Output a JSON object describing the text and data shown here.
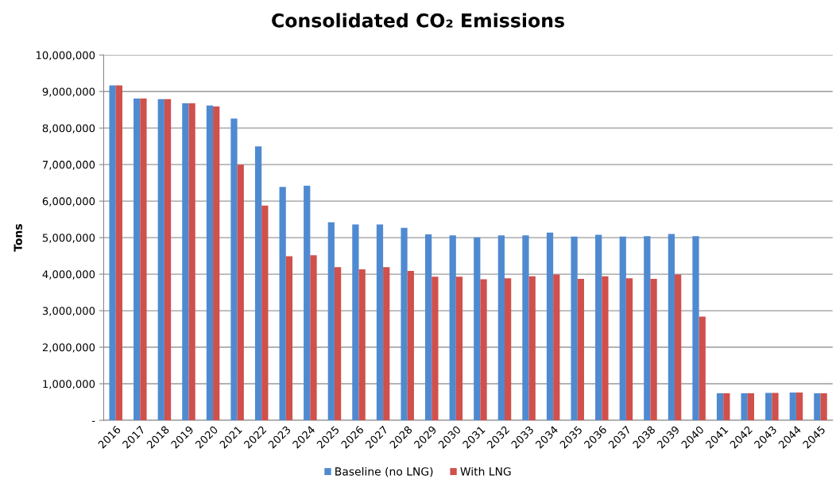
{
  "chart_data": {
    "type": "bar",
    "title": "Consolidated CO₂ Emissions",
    "ylabel": "Tons",
    "categories": [
      "2016",
      "2017",
      "2018",
      "2019",
      "2020",
      "2021",
      "2022",
      "2023",
      "2024",
      "2025",
      "2026",
      "2027",
      "2028",
      "2029",
      "2030",
      "2031",
      "2032",
      "2033",
      "2034",
      "2035",
      "2036",
      "2037",
      "2038",
      "2039",
      "2040",
      "2041",
      "2042",
      "2043",
      "2044",
      "2045"
    ],
    "series": [
      {
        "name": "Baseline (no LNG)",
        "color": "#4f8ad1",
        "values": [
          9170000,
          8810000,
          8790000,
          8680000,
          8620000,
          8260000,
          7500000,
          6390000,
          6420000,
          5420000,
          5360000,
          5360000,
          5270000,
          5090000,
          5060000,
          5010000,
          5060000,
          5060000,
          5140000,
          5030000,
          5080000,
          5030000,
          5040000,
          5100000,
          5040000,
          740000,
          740000,
          750000,
          760000,
          740000
        ]
      },
      {
        "name": "With LNG",
        "color": "#d0504c",
        "values": [
          9170000,
          8810000,
          8790000,
          8680000,
          8590000,
          7000000,
          5880000,
          4490000,
          4520000,
          4190000,
          4130000,
          4190000,
          4090000,
          3930000,
          3930000,
          3860000,
          3890000,
          3940000,
          3990000,
          3870000,
          3940000,
          3890000,
          3870000,
          3990000,
          2840000,
          740000,
          740000,
          750000,
          760000,
          740000
        ]
      }
    ],
    "ylim": [
      0,
      10000000
    ],
    "yticks": [
      {
        "value": 0,
        "label": "-"
      },
      {
        "value": 1000000,
        "label": "1,000,000"
      },
      {
        "value": 2000000,
        "label": "2,000,000"
      },
      {
        "value": 3000000,
        "label": "3,000,000"
      },
      {
        "value": 4000000,
        "label": "4,000,000"
      },
      {
        "value": 5000000,
        "label": "5,000,000"
      },
      {
        "value": 6000000,
        "label": "6,000,000"
      },
      {
        "value": 7000000,
        "label": "7,000,000"
      },
      {
        "value": 8000000,
        "label": "8,000,000"
      },
      {
        "value": 9000000,
        "label": "9,000,000"
      },
      {
        "value": 10000000,
        "label": "10,000,000"
      }
    ],
    "grid": "y",
    "legend": "bottom"
  }
}
